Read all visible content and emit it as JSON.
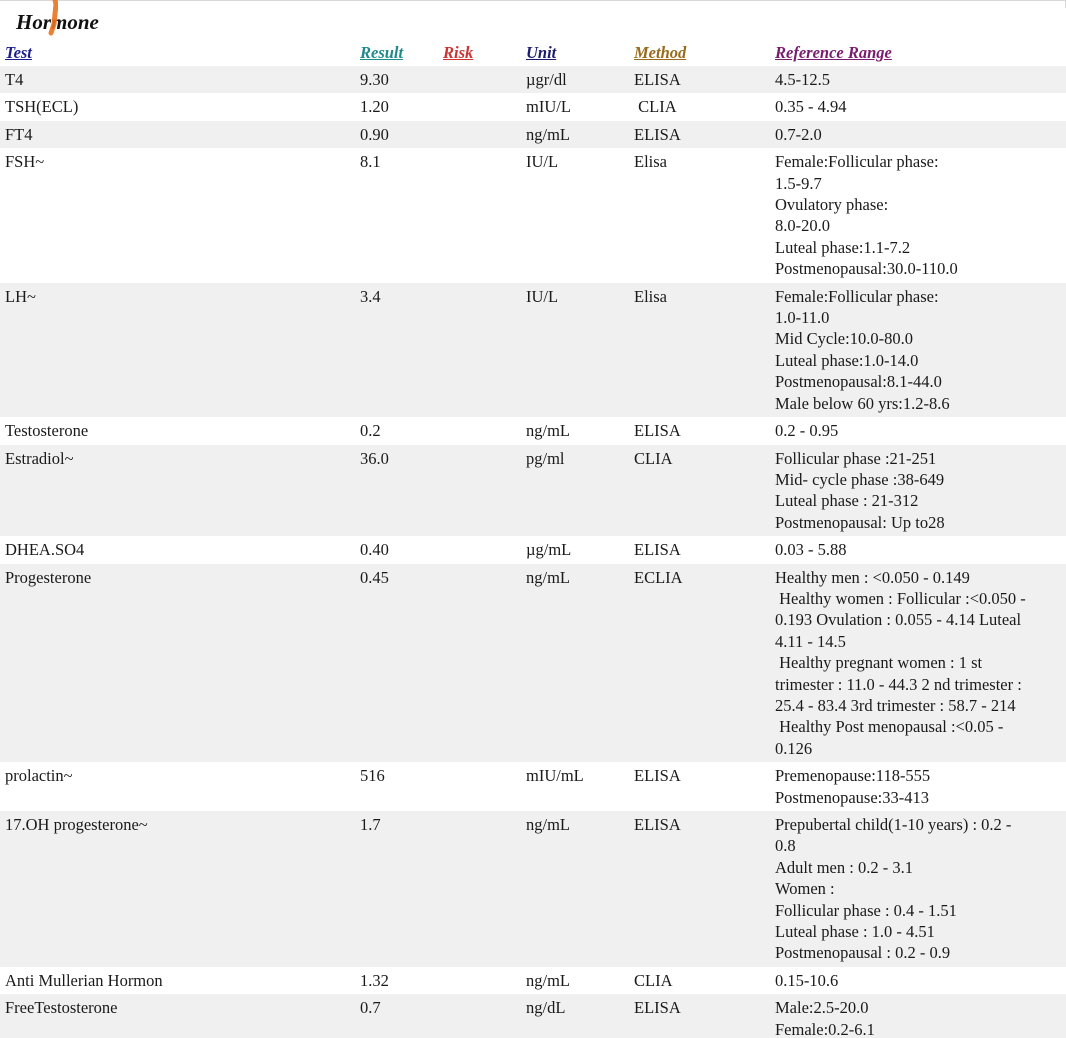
{
  "section_title": "Hormone",
  "headers": {
    "test": "Test",
    "result": "Result",
    "risk": "Risk",
    "unit": "Unit",
    "method": "Method",
    "reference_range": "Reference Range"
  },
  "header_colors": {
    "test": "#1c1c8c",
    "result": "#1f8a8a",
    "risk": "#cc3333",
    "unit": "#1c1c6e",
    "method": "#9a6a1c",
    "reference_range": "#7a1c6e"
  },
  "rows": [
    {
      "test": "T4",
      "result": "9.30",
      "risk": "",
      "unit": "µgr/dl",
      "method": "ELISA",
      "reference": [
        "4.5-12.5"
      ]
    },
    {
      "test": "TSH(ECL)",
      "result": "1.20",
      "risk": "",
      "unit": "mIU/L",
      "method": " CLIA",
      "reference": [
        "0.35 - 4.94"
      ]
    },
    {
      "test": "FT4",
      "result": "0.90",
      "risk": "",
      "unit": "ng/mL",
      "method": "ELISA",
      "reference": [
        "0.7-2.0"
      ]
    },
    {
      "test": "FSH~",
      "result": "8.1",
      "risk": "",
      "unit": "IU/L",
      "method": "Elisa",
      "reference": [
        "Female:Follicular phase:",
        "1.5-9.7",
        "Ovulatory phase:",
        "8.0-20.0",
        "Luteal phase:1.1-7.2",
        "Postmenopausal:30.0-110.0"
      ]
    },
    {
      "test": "LH~",
      "result": "3.4",
      "risk": "",
      "unit": "IU/L",
      "method": "Elisa",
      "reference": [
        "Female:Follicular phase:",
        "1.0-11.0",
        "Mid Cycle:10.0-80.0",
        "Luteal phase:1.0-14.0",
        "Postmenopausal:8.1-44.0",
        "Male below 60 yrs:1.2-8.6"
      ]
    },
    {
      "test": "Testosterone",
      "result": "0.2",
      "risk": "",
      "unit": "ng/mL",
      "method": "ELISA",
      "reference": [
        "0.2 - 0.95"
      ]
    },
    {
      "test": "Estradiol~",
      "result": "36.0",
      "risk": "",
      "unit": "pg/ml",
      "method": "CLIA",
      "reference": [
        "Follicular phase :21-251",
        "Mid- cycle phase :38-649",
        "Luteal phase : 21-312",
        "Postmenopausal: Up to28"
      ]
    },
    {
      "test": "DHEA.SO4",
      "result": "0.40",
      "risk": "",
      "unit": "µg/mL",
      "method": "ELISA",
      "reference": [
        "0.03 - 5.88"
      ]
    },
    {
      "test": "Progesterone",
      "result": "0.45",
      "risk": "",
      "unit": "ng/mL",
      "method": "ECLIA",
      "reference": [
        "Healthy men : <0.050 - 0.149",
        " Healthy women : Follicular :<0.050 -",
        "0.193 Ovulation : 0.055 - 4.14 Luteal",
        "4.11 - 14.5",
        " Healthy pregnant women : 1 st",
        "trimester : 11.0 - 44.3 2 nd trimester :",
        "25.4 - 83.4 3rd trimester : 58.7 - 214",
        " Healthy Post menopausal :<0.05 -",
        "0.126"
      ]
    },
    {
      "test": "prolactin~",
      "result": "516",
      "risk": "",
      "unit": "mIU/mL",
      "method": "ELISA",
      "reference": [
        "Premenopause:118-555",
        "Postmenopause:33-413"
      ]
    },
    {
      "test": "17.OH progesterone~",
      "result": "1.7",
      "risk": "",
      "unit": "ng/mL",
      "method": "ELISA",
      "reference": [
        "Prepubertal child(1-10 years) : 0.2 -",
        "0.8",
        "Adult men : 0.2 - 3.1",
        "Women :",
        "Follicular phase : 0.4 - 1.51",
        "Luteal phase : 1.0 - 4.51",
        "Postmenopausal : 0.2 - 0.9"
      ]
    },
    {
      "test": "Anti Mullerian Hormon",
      "result": "1.32",
      "risk": "",
      "unit": "ng/mL",
      "method": "CLIA",
      "reference": [
        "0.15-10.6"
      ]
    },
    {
      "test": "FreeTestosterone",
      "result": "0.7",
      "risk": "",
      "unit": "ng/dL",
      "method": "ELISA",
      "reference": [
        "Male:2.5-20.0",
        "Female:0.2-6.1"
      ]
    }
  ],
  "colors": {
    "row_stripe": "#f0f0f0",
    "row_plain": "#ffffff",
    "text": "#1a1a1a",
    "pen_mark": "#e8731f"
  }
}
